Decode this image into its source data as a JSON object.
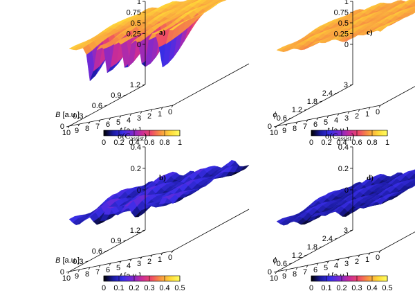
{
  "chart_data": [
    {
      "id": "a",
      "type": "surface3d",
      "panel_label": "a)",
      "zlabel": "⟨C",
      "zlabel_sub": "assist",
      "zlabel_close": "⟩",
      "xlabel_var": "t",
      "xlabel_unit": "[a.u.]",
      "ylabel_var": "B",
      "ylabel_unit": "[a.u.]",
      "xticks": [
        "10",
        "9",
        "8",
        "7",
        "6",
        "5",
        "4",
        "3",
        "2",
        "1",
        "0"
      ],
      "yticks": [
        "0",
        "0.3",
        "0.6",
        "0.9",
        "1.2"
      ],
      "zticks": [
        "0",
        "0.25",
        "0.5",
        "0.75",
        "1"
      ],
      "xlim": [
        0,
        10
      ],
      "ylim": [
        0,
        1.2
      ],
      "zlim": [
        0,
        1
      ],
      "surface": {
        "base": 0.82,
        "ripple": 0.06,
        "dips": [
          1,
          2.8,
          4.5,
          6.2,
          7.9
        ],
        "dip_depth": 0.85,
        "dip_side": "low_y"
      },
      "colorbar": {
        "range": [
          0,
          1
        ],
        "ticks": [
          "0",
          "0.2",
          "0.4",
          "0.6",
          "0.8",
          "1"
        ]
      }
    },
    {
      "id": "b",
      "type": "surface3d",
      "panel_label": "b)",
      "zlabel": "σ(C",
      "zlabel_sub": "assist",
      "zlabel_close": ")",
      "xlabel_var": "t",
      "xlabel_unit": "[a.u.]",
      "ylabel_var": "B",
      "ylabel_unit": "[a.u.]",
      "xticks": [
        "10",
        "9",
        "8",
        "7",
        "6",
        "5",
        "4",
        "3",
        "2",
        "1",
        "0"
      ],
      "yticks": [
        "0",
        "0.3",
        "0.6",
        "0.9",
        "1.2"
      ],
      "zticks": [
        "0",
        "0.2",
        "0.4"
      ],
      "xlim": [
        0,
        10
      ],
      "ylim": [
        0,
        1.2
      ],
      "zlim": [
        0,
        0.5
      ],
      "surface": {
        "base": 0.08,
        "ripple": 0.08,
        "dips": [
          1,
          2.8,
          4.5,
          6.2,
          7.9
        ],
        "dip_depth": -0.12,
        "dip_side": "low_y"
      },
      "colorbar": {
        "range": [
          0,
          0.5
        ],
        "ticks": [
          "0",
          "0.1",
          "0.2",
          "0.3",
          "0.4",
          "0.5"
        ]
      }
    },
    {
      "id": "c",
      "type": "surface3d",
      "panel_label": "c)",
      "zlabel": "⟨C",
      "zlabel_sub": "assist",
      "zlabel_close": "⟩",
      "xlabel_var": "t",
      "xlabel_unit": "[a.u.]",
      "ylabel_var": "ϕ",
      "ylabel_unit": "",
      "xticks": [
        "10",
        "9",
        "8",
        "7",
        "6",
        "5",
        "4",
        "3",
        "2",
        "1",
        "0"
      ],
      "yticks": [
        "0",
        "0.6",
        "1.2",
        "1.8",
        "2.4",
        "3"
      ],
      "zticks": [
        "0",
        "0.25",
        "0.5",
        "0.75",
        "1"
      ],
      "xlim": [
        0,
        10
      ],
      "ylim": [
        0,
        3
      ],
      "zlim": [
        0,
        1
      ],
      "surface": {
        "base": 0.78,
        "ripple": 0.07,
        "dips": [],
        "dip_depth": 0,
        "dip_side": "none"
      },
      "colorbar": {
        "range": [
          0,
          1
        ],
        "ticks": [
          "0",
          "0.2",
          "0.4",
          "0.6",
          "0.8",
          "1"
        ]
      }
    },
    {
      "id": "d",
      "type": "surface3d",
      "panel_label": "d)",
      "zlabel": "σ(C",
      "zlabel_sub": "assist",
      "zlabel_close": ")",
      "xlabel_var": "t",
      "xlabel_unit": "[a.u.]",
      "ylabel_var": "ϕ",
      "ylabel_unit": "",
      "xticks": [
        "10",
        "9",
        "8",
        "7",
        "6",
        "5",
        "4",
        "3",
        "2",
        "1",
        "0"
      ],
      "yticks": [
        "0",
        "0.6",
        "1.2",
        "1.8",
        "2.4",
        "3"
      ],
      "zticks": [
        "0",
        "0.2",
        "0.4"
      ],
      "xlim": [
        0,
        10
      ],
      "ylim": [
        0,
        3
      ],
      "zlim": [
        0,
        0.5
      ],
      "surface": {
        "base": 0.07,
        "ripple": 0.06,
        "dips": [],
        "dip_depth": 0,
        "dip_side": "none"
      },
      "colorbar": {
        "range": [
          0,
          0.5
        ],
        "ticks": [
          "0",
          "0.1",
          "0.2",
          "0.3",
          "0.4",
          "0.5"
        ]
      }
    }
  ],
  "colormap": [
    "#000000",
    "#1a1aa0",
    "#3a2ee8",
    "#7a28d0",
    "#c82c98",
    "#ee4a66",
    "#f89640",
    "#ffd838",
    "#ffff60"
  ]
}
